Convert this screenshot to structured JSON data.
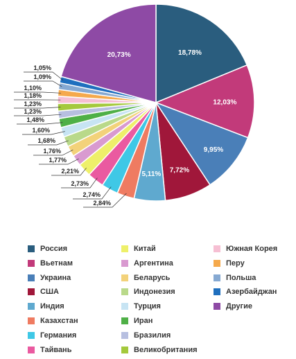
{
  "chart_data": {
    "type": "pie",
    "slices": [
      {
        "name": "Россия",
        "value": 18.78,
        "label": "18,78%",
        "color": "#2a5d7e"
      },
      {
        "name": "Вьетнам",
        "value": 12.03,
        "label": "12,03%",
        "color": "#c23a7a"
      },
      {
        "name": "Украина",
        "value": 9.95,
        "label": "9,95%",
        "color": "#4a7fb8"
      },
      {
        "name": "США",
        "value": 7.72,
        "label": "7,72%",
        "color": "#a0173a"
      },
      {
        "name": "Индия",
        "value": 5.11,
        "label": "5,11%",
        "color": "#5fa9cf"
      },
      {
        "name": "Казахстан",
        "value": 2.84,
        "label": "2,84%",
        "color": "#ef7b61"
      },
      {
        "name": "Германия",
        "value": 2.74,
        "label": "2,74%",
        "color": "#3fc8e6"
      },
      {
        "name": "Тайвань",
        "value": 2.73,
        "label": "2,73%",
        "color": "#ea5aa0"
      },
      {
        "name": "Китай",
        "value": 2.21,
        "label": "2,21%",
        "color": "#eef06a"
      },
      {
        "name": "Аргентина",
        "value": 1.77,
        "label": "1,77%",
        "color": "#d99ad0"
      },
      {
        "name": "Беларусь",
        "value": 1.76,
        "label": "1,76%",
        "color": "#f3d27a"
      },
      {
        "name": "Индонезия",
        "value": 1.68,
        "label": "1,68%",
        "color": "#b9d98a"
      },
      {
        "name": "Турция",
        "value": 1.6,
        "label": "1,60%",
        "color": "#c7e4f3"
      },
      {
        "name": "Иран",
        "value": 1.48,
        "label": "1,48%",
        "color": "#4fb047"
      },
      {
        "name": "Бразилия",
        "value": 1.23,
        "label": "1,23%",
        "color": "#b7bfe0"
      },
      {
        "name": "Великобритания",
        "value": 1.23,
        "label": "1,23%",
        "color": "#a4c93c"
      },
      {
        "name": "Южная Корея",
        "value": 1.18,
        "label": "1,18%",
        "color": "#f6bfd3"
      },
      {
        "name": "Перу",
        "value": 1.1,
        "label": "1,10%",
        "color": "#f5a94c"
      },
      {
        "name": "Польша",
        "value": 1.09,
        "label": "1,09%",
        "color": "#86a9d2"
      },
      {
        "name": "Азербайджан",
        "value": 1.05,
        "label": "1,05%",
        "color": "#1f6fbe"
      },
      {
        "name": "Другие",
        "value": 20.73,
        "label": "20,73%",
        "color": "#8e4aa5"
      }
    ]
  },
  "legend": {
    "columns": [
      [
        {
          "label": "Россия",
          "color": "#2a5d7e"
        },
        {
          "label": "Вьетнам",
          "color": "#c23a7a"
        },
        {
          "label": "Украина",
          "color": "#4a7fb8"
        },
        {
          "label": "США",
          "color": "#a0173a"
        },
        {
          "label": "Индия",
          "color": "#5fa9cf"
        },
        {
          "label": "Казахстан",
          "color": "#ef7b61"
        },
        {
          "label": "Германия",
          "color": "#3fc8e6"
        },
        {
          "label": "Тайвань",
          "color": "#ea5aa0"
        }
      ],
      [
        {
          "label": "Китай",
          "color": "#eef06a"
        },
        {
          "label": "Аргентина",
          "color": "#d99ad0"
        },
        {
          "label": "Беларусь",
          "color": "#f3d27a"
        },
        {
          "label": "Индонезия",
          "color": "#b9d98a"
        },
        {
          "label": "Турция",
          "color": "#c7e4f3"
        },
        {
          "label": "Иран",
          "color": "#4fb047"
        },
        {
          "label": "Бразилия",
          "color": "#b7bfe0"
        },
        {
          "label": "Великобритания",
          "color": "#a4c93c"
        }
      ],
      [
        {
          "label": "Южная Корея",
          "color": "#f6bfd3"
        },
        {
          "label": "Перу",
          "color": "#f5a94c"
        },
        {
          "label": "Польша",
          "color": "#86a9d2"
        },
        {
          "label": "Азербайджан",
          "color": "#1f6fbe"
        },
        {
          "label": "Другие",
          "color": "#8e4aa5"
        }
      ]
    ]
  }
}
